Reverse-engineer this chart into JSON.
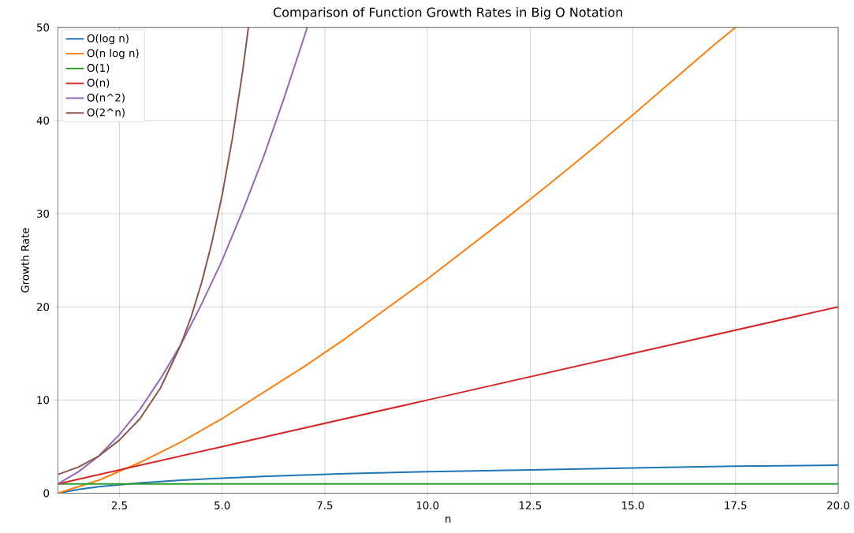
{
  "chart_data": {
    "type": "line",
    "title": "Comparison of Function Growth Rates in Big O Notation",
    "xlabel": "n",
    "ylabel": "Growth Rate",
    "xlim": [
      1,
      20
    ],
    "ylim": [
      0,
      50
    ],
    "xticks": [
      {
        "value": 2.5,
        "label": "2.5"
      },
      {
        "value": 5,
        "label": "5.0"
      },
      {
        "value": 7.5,
        "label": "7.5"
      },
      {
        "value": 10,
        "label": "10.0"
      },
      {
        "value": 12.5,
        "label": "12.5"
      },
      {
        "value": 15,
        "label": "15.0"
      },
      {
        "value": 17.5,
        "label": "17.5"
      },
      {
        "value": 20,
        "label": "20.0"
      }
    ],
    "yticks": [
      0,
      10,
      20,
      30,
      40,
      50
    ],
    "grid": true,
    "legend": "top left",
    "marker": "none",
    "line_style": "solid",
    "series": [
      {
        "name": "O(log n)",
        "color": "#1f77b4",
        "x": [
          1,
          1.5,
          2,
          3,
          4,
          5,
          6,
          8,
          10,
          12.5,
          15,
          17.5,
          20
        ],
        "values": [
          0,
          0.4,
          0.7,
          1.1,
          1.4,
          1.6,
          1.8,
          2.1,
          2.3,
          2.5,
          2.7,
          2.9,
          3.0
        ]
      },
      {
        "name": "O(n log n)",
        "color": "#ff7f0e",
        "x": [
          1,
          2,
          3,
          4,
          5,
          6,
          7,
          8,
          9,
          10,
          11,
          12,
          13,
          14,
          15,
          16,
          17,
          17.5
        ],
        "values": [
          0,
          1.4,
          3.3,
          5.5,
          8.0,
          10.8,
          13.6,
          16.6,
          19.8,
          23.0,
          26.4,
          29.8,
          33.3,
          36.9,
          40.6,
          44.4,
          48.2,
          50
        ]
      },
      {
        "name": "O(1)",
        "color": "#2ca02c",
        "x": [
          1,
          20
        ],
        "values": [
          1,
          1
        ]
      },
      {
        "name": "O(n)",
        "color": "#d62728",
        "x": [
          1,
          5,
          10,
          15,
          20
        ],
        "values": [
          1,
          5,
          10,
          15,
          20
        ]
      },
      {
        "name": "O(n^2)",
        "color": "#9467bd",
        "x": [
          1,
          1.5,
          2,
          2.5,
          3,
          3.5,
          4,
          4.5,
          5,
          5.5,
          6,
          6.5,
          7,
          7.07
        ],
        "values": [
          1,
          2.3,
          4,
          6.3,
          9,
          12.3,
          16,
          20.3,
          25,
          30.3,
          36,
          42.3,
          49,
          50
        ]
      },
      {
        "name": "O(2^n)",
        "color": "#8c564b",
        "x": [
          1,
          1.5,
          2,
          2.5,
          3,
          3.5,
          4,
          4.25,
          4.5,
          4.75,
          5,
          5.25,
          5.5,
          5.64
        ],
        "values": [
          2,
          2.8,
          4,
          5.7,
          8,
          11.3,
          16,
          19.0,
          22.6,
          26.9,
          32,
          38.1,
          45.3,
          50
        ]
      }
    ]
  }
}
